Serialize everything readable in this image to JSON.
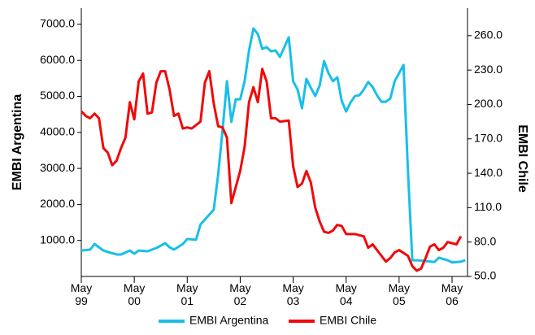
{
  "chart_data": {
    "type": "line",
    "y_label": "EMBI Argentina",
    "y2_label": "EMBI Chile",
    "xlim": [
      0,
      87.5
    ],
    "xticks": [
      {
        "value": 0,
        "label": "May\n99"
      },
      {
        "value": 12,
        "label": "May\n00"
      },
      {
        "value": 24,
        "label": "May\n01"
      },
      {
        "value": 36,
        "label": "May\n02"
      },
      {
        "value": 48,
        "label": "May\n03"
      },
      {
        "value": 60,
        "label": "May\n04"
      },
      {
        "value": 72,
        "label": "May\n05"
      },
      {
        "value": 84,
        "label": "May\n06"
      }
    ],
    "ylim": [
      0,
      7450
    ],
    "yticks": [
      {
        "value": 1000,
        "label": "1000.0"
      },
      {
        "value": 2000,
        "label": "2000.0"
      },
      {
        "value": 3000,
        "label": "3000.0"
      },
      {
        "value": 4000,
        "label": "4000.0"
      },
      {
        "value": 5000,
        "label": "5000.0"
      },
      {
        "value": 6000,
        "label": "6000.0"
      },
      {
        "value": 7000,
        "label": "7000.0"
      }
    ],
    "y2lim": [
      50,
      284
    ],
    "y2ticks": [
      {
        "value": 50,
        "label": "50.0"
      },
      {
        "value": 80,
        "label": "80.0"
      },
      {
        "value": 110,
        "label": "110.0"
      },
      {
        "value": 140,
        "label": "140.0"
      },
      {
        "value": 170,
        "label": "170.0"
      },
      {
        "value": 200,
        "label": "200.0"
      },
      {
        "value": 230,
        "label": "230.0"
      },
      {
        "value": 260,
        "label": "260.0"
      }
    ],
    "series": [
      {
        "name": "EMBI Argentina",
        "color": "#19bfe8",
        "axis": "y",
        "x": [
          0,
          2,
          3,
          5,
          6,
          8,
          9,
          11,
          12,
          13,
          15,
          16,
          17,
          19,
          20,
          21,
          23,
          24,
          26,
          27,
          28,
          30,
          31,
          32,
          33,
          34,
          35,
          36,
          37,
          38,
          39,
          40,
          41,
          42,
          43,
          44,
          45,
          46,
          47,
          48,
          49,
          50,
          51,
          52,
          53,
          54,
          55,
          56,
          57,
          58,
          59,
          60,
          61,
          62,
          63,
          64,
          65,
          66,
          67,
          68,
          69,
          70,
          71,
          73,
          74,
          75,
          76,
          78,
          80,
          81,
          83,
          84,
          86,
          87
        ],
        "values": [
          720,
          745,
          900,
          720,
          680,
          610,
          610,
          720,
          630,
          720,
          700,
          745,
          790,
          925,
          810,
          745,
          900,
          1040,
          1020,
          1445,
          1580,
          1850,
          2820,
          4060,
          5420,
          4290,
          4920,
          4920,
          5420,
          6275,
          6885,
          6730,
          6320,
          6365,
          6250,
          6275,
          6095,
          6365,
          6640,
          5420,
          5190,
          4670,
          5485,
          5240,
          5010,
          5300,
          5980,
          5645,
          5420,
          5530,
          4875,
          4580,
          4830,
          5010,
          5030,
          5190,
          5400,
          5260,
          5030,
          4850,
          4850,
          4940,
          5420,
          5870,
          2935,
          450,
          450,
          430,
          400,
          520,
          450,
          390,
          410,
          450
        ]
      },
      {
        "name": "EMBI Chile",
        "color": "#f00a0a",
        "axis": "y2",
        "x": [
          0,
          1,
          2,
          3,
          4,
          5,
          6,
          7,
          8,
          9,
          10,
          11,
          12,
          13,
          14,
          15,
          16,
          17,
          18,
          19,
          20,
          21,
          22,
          23,
          24,
          25,
          27,
          28,
          29,
          30,
          31,
          32,
          33,
          34,
          35,
          36,
          37,
          38,
          39,
          40,
          41,
          42,
          43,
          44,
          45,
          47,
          48,
          49,
          50,
          51,
          52,
          53,
          54,
          55,
          56,
          57,
          58,
          59,
          60,
          62,
          64,
          65,
          66,
          67,
          68,
          69,
          70,
          71,
          72,
          74,
          75,
          76,
          77,
          78,
          79,
          80,
          81,
          82,
          83,
          85,
          86
        ],
        "values": [
          194,
          190,
          188,
          192,
          188,
          162,
          158,
          147,
          151,
          162,
          171,
          202,
          187,
          220,
          227,
          192,
          193,
          219,
          229,
          229,
          213,
          190,
          192,
          179,
          180,
          179,
          185,
          219,
          229,
          201,
          181,
          180,
          171,
          114,
          128,
          142,
          163,
          202,
          215,
          202,
          231,
          220,
          188,
          188,
          185,
          186,
          146,
          128,
          131,
          142,
          132,
          110,
          98,
          89,
          88,
          90,
          95,
          94,
          87,
          87,
          85,
          75,
          78,
          73,
          68,
          63,
          66,
          71,
          73,
          68,
          59,
          55,
          57,
          66,
          76,
          78,
          73,
          75,
          80,
          78,
          85
        ]
      }
    ]
  }
}
